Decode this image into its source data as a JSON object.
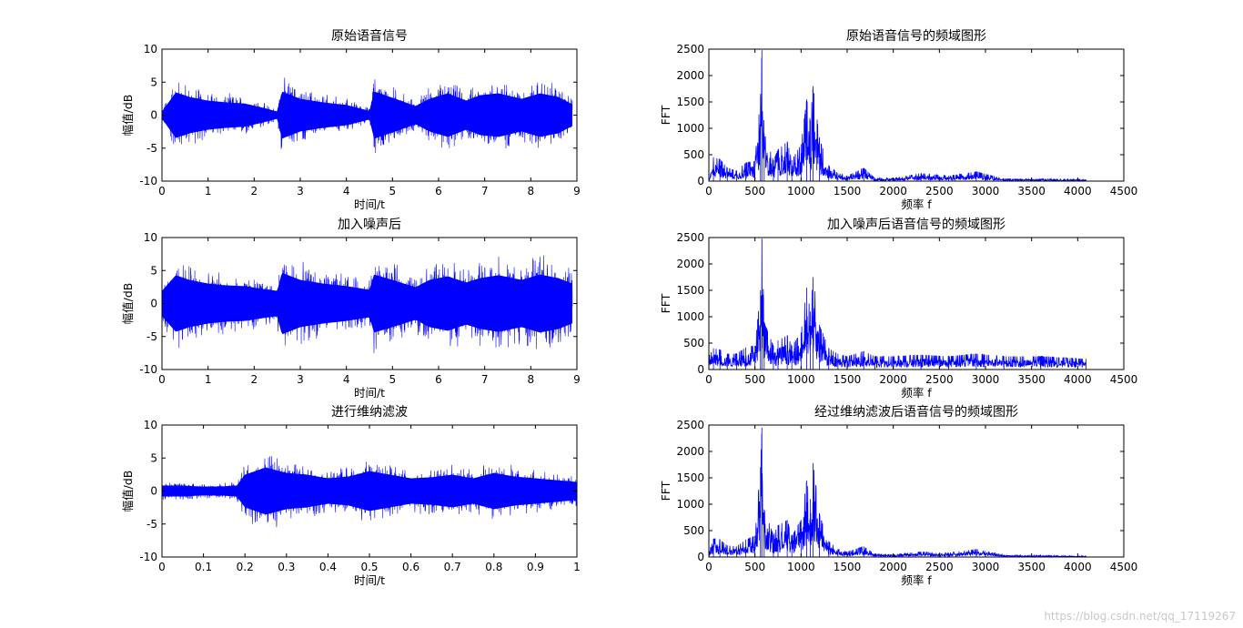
{
  "chart_data": [
    {
      "type": "line",
      "title": "原始语音信号",
      "xlabel": "时间/t",
      "ylabel": "幅值/dB",
      "xlim": [
        0,
        9
      ],
      "ylim": [
        -10,
        10
      ],
      "xticks": [
        0,
        1,
        2,
        3,
        4,
        5,
        6,
        7,
        8,
        9
      ],
      "yticks": [
        -10,
        -5,
        0,
        5,
        10
      ],
      "series": [
        {
          "color": "#0000ff",
          "x": [
            0,
            0.3,
            0.6,
            1.0,
            1.4,
            1.8,
            2.2,
            2.5,
            2.6,
            3.0,
            3.5,
            4.0,
            4.5,
            4.6,
            5.0,
            5.5,
            5.8,
            6.2,
            6.6,
            6.9,
            7.3,
            7.8,
            8.2,
            8.6,
            8.9
          ],
          "envelope": [
            1.0,
            6.3,
            5.0,
            4.0,
            3.5,
            3.2,
            2.0,
            1.0,
            6.5,
            4.5,
            3.5,
            2.8,
            1.2,
            6.5,
            4.8,
            2.5,
            4.5,
            6.0,
            4.0,
            5.5,
            6.0,
            4.5,
            6.0,
            5.0,
            3.0
          ]
        }
      ]
    },
    {
      "type": "line",
      "title": "原始语音信号的频域图形",
      "xlabel": "频率 f",
      "ylabel": "FFT",
      "xlim": [
        0,
        4500
      ],
      "ylim": [
        0,
        2500
      ],
      "xticks": [
        0,
        500,
        1000,
        1500,
        2000,
        2500,
        3000,
        3500,
        4000,
        4500
      ],
      "yticks": [
        0,
        500,
        1000,
        1500,
        2000,
        2500
      ],
      "series": [
        {
          "color": "#0000ff",
          "x": [
            0,
            50,
            120,
            200,
            300,
            400,
            500,
            560,
            575,
            600,
            700,
            750,
            850,
            900,
            1000,
            1060,
            1100,
            1130,
            1200,
            1300,
            1400,
            1500,
            1680,
            1800,
            2000,
            2300,
            2600,
            2900,
            3200,
            3600,
            4090
          ],
          "y": [
            80,
            450,
            420,
            250,
            200,
            350,
            380,
            1600,
            2480,
            900,
            400,
            600,
            750,
            400,
            700,
            1550,
            1150,
            1800,
            800,
            300,
            150,
            100,
            250,
            60,
            60,
            150,
            100,
            180,
            50,
            40,
            30
          ]
        }
      ]
    },
    {
      "type": "line",
      "title": "加入噪声后",
      "xlabel": "时间/t",
      "ylabel": "幅值/dB",
      "xlim": [
        0,
        9
      ],
      "ylim": [
        -10,
        10
      ],
      "xticks": [
        0,
        1,
        2,
        3,
        4,
        5,
        6,
        7,
        8,
        9
      ],
      "yticks": [
        -10,
        -5,
        0,
        5,
        10
      ],
      "series": [
        {
          "color": "#0000ff",
          "x": [
            0,
            0.3,
            0.6,
            1.0,
            1.4,
            1.8,
            2.2,
            2.5,
            2.6,
            3.0,
            3.5,
            4.0,
            4.5,
            4.6,
            5.0,
            5.5,
            5.8,
            6.2,
            6.6,
            6.9,
            7.3,
            7.8,
            8.2,
            8.6,
            8.9
          ],
          "envelope": [
            3.5,
            7.8,
            6.5,
            5.5,
            5.0,
            4.8,
            4.0,
            3.5,
            8.5,
            6.5,
            5.5,
            4.8,
            3.8,
            8.0,
            6.5,
            4.5,
            6.5,
            7.5,
            5.8,
            7.0,
            7.8,
            6.5,
            8.0,
            7.0,
            5.5
          ]
        }
      ]
    },
    {
      "type": "line",
      "title": "加入噪声后语音信号的频域图形",
      "xlabel": "频率 f",
      "ylabel": "FFT",
      "xlim": [
        0,
        4500
      ],
      "ylim": [
        0,
        2500
      ],
      "xticks": [
        0,
        500,
        1000,
        1500,
        2000,
        2500,
        3000,
        3500,
        4000,
        4500
      ],
      "yticks": [
        0,
        500,
        1000,
        1500,
        2000,
        2500
      ],
      "series": [
        {
          "color": "#0000ff",
          "x": [
            0,
            50,
            120,
            200,
            300,
            400,
            500,
            560,
            575,
            600,
            700,
            750,
            850,
            900,
            1000,
            1060,
            1100,
            1130,
            1200,
            1300,
            1400,
            1500,
            1680,
            1800,
            2000,
            2300,
            2600,
            2900,
            3200,
            3600,
            4090
          ],
          "y": [
            250,
            400,
            380,
            300,
            300,
            420,
            450,
            1500,
            2480,
            900,
            450,
            550,
            650,
            450,
            700,
            1550,
            1100,
            1750,
            850,
            400,
            300,
            250,
            350,
            250,
            250,
            280,
            250,
            300,
            250,
            250,
            200
          ]
        }
      ]
    },
    {
      "type": "line",
      "title": "进行维纳滤波",
      "xlabel": "时间/t",
      "ylabel": "幅值/dB",
      "xlim": [
        0,
        1
      ],
      "ylim": [
        -10,
        10
      ],
      "xticks": [
        0,
        0.1,
        0.2,
        0.3,
        0.4,
        0.5,
        0.6,
        0.7,
        0.8,
        0.9,
        1
      ],
      "yticks": [
        -10,
        -5,
        0,
        5,
        10
      ],
      "series": [
        {
          "color": "#0000ff",
          "x": [
            0,
            0.05,
            0.1,
            0.15,
            0.18,
            0.2,
            0.25,
            0.3,
            0.35,
            0.4,
            0.45,
            0.5,
            0.55,
            0.6,
            0.65,
            0.7,
            0.75,
            0.8,
            0.85,
            0.9,
            0.95,
            1.0
          ],
          "envelope": [
            1.5,
            1.5,
            1.2,
            1.3,
            1.5,
            4.5,
            6.5,
            5.0,
            4.5,
            3.5,
            4.0,
            5.5,
            4.5,
            3.5,
            3.8,
            4.5,
            3.5,
            5.0,
            4.0,
            3.5,
            3.0,
            2.5
          ]
        }
      ]
    },
    {
      "type": "line",
      "title": "经过维纳滤波后语音信号的频域图形",
      "xlabel": "频率 f",
      "ylabel": "FFT",
      "xlim": [
        0,
        4500
      ],
      "ylim": [
        0,
        2500
      ],
      "xticks": [
        0,
        500,
        1000,
        1500,
        2000,
        2500,
        3000,
        3500,
        4000,
        4500
      ],
      "yticks": [
        0,
        500,
        1000,
        1500,
        2000,
        2500
      ],
      "series": [
        {
          "color": "#0000ff",
          "x": [
            0,
            50,
            120,
            200,
            300,
            400,
            500,
            560,
            575,
            600,
            700,
            750,
            850,
            900,
            1000,
            1060,
            1100,
            1130,
            1200,
            1300,
            1400,
            1500,
            1680,
            1800,
            2000,
            2300,
            2600,
            2900,
            3200,
            3600,
            4090
          ],
          "y": [
            80,
            350,
            330,
            220,
            200,
            330,
            400,
            1700,
            2450,
            900,
            420,
            600,
            700,
            400,
            700,
            1450,
            1100,
            1780,
            800,
            300,
            150,
            100,
            200,
            60,
            50,
            100,
            80,
            150,
            40,
            30,
            20
          ]
        }
      ]
    }
  ],
  "watermark": "https://blog.csdn.net/qq_17119267"
}
